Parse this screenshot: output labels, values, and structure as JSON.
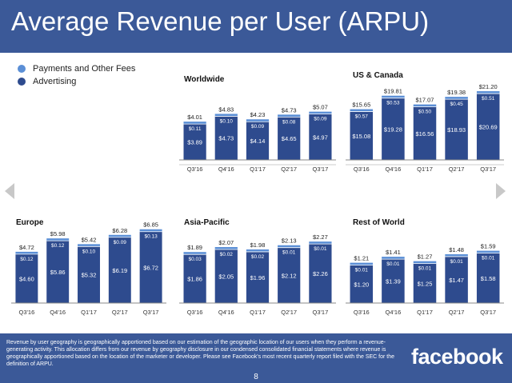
{
  "slide": {
    "title": "Average Revenue per User (ARPU)",
    "footnote": "Revenue by user geography is geographically apportioned based on our estimation of the geographic location of our users when they perform a revenue-generating activity. This allocation differs from our revenue by geography disclosure in our condensed consolidated financial statements where revenue is geographically apportioned based on the location of the marketer or developer. Please see Facebook's most recent quarterly report filed with the SEC for the definition of ARPU.",
    "logo": "facebook",
    "page_number": "8"
  },
  "legend": [
    {
      "label": "Payments and Other Fees",
      "color": "#5b8fd6"
    },
    {
      "label": "Advertising",
      "color": "#2e4b8e"
    }
  ],
  "colors": {
    "advertising": "#2e4b8e",
    "payments": "#5b8fd6",
    "header": "#3b5998",
    "axis": "#888888"
  },
  "chart_data": [
    {
      "type": "bar",
      "title": "Worldwide",
      "categories": [
        "Q3'16",
        "Q4'16",
        "Q1'17",
        "Q2'17",
        "Q3'17"
      ],
      "series": [
        {
          "name": "Advertising",
          "values": [
            3.89,
            4.73,
            4.14,
            4.65,
            4.97
          ],
          "labels": [
            "$3.89",
            "$4.73",
            "$4.14",
            "$4.65",
            "$4.97"
          ]
        },
        {
          "name": "Payments and Other Fees",
          "values": [
            0.11,
            0.1,
            0.09,
            0.08,
            0.09
          ],
          "labels": [
            "$0.11",
            "$0.10",
            "$0.09",
            "$0.08",
            "$0.09"
          ]
        }
      ],
      "totals": [
        "$4.01",
        "$4.83",
        "$4.23",
        "$4.73",
        "$5.07"
      ],
      "ylim": [
        0,
        5.2
      ]
    },
    {
      "type": "bar",
      "title": "US & Canada",
      "categories": [
        "Q3'16",
        "Q4'16",
        "Q1'17",
        "Q2'17",
        "Q3'17"
      ],
      "series": [
        {
          "name": "Advertising",
          "values": [
            15.08,
            19.28,
            16.56,
            18.93,
            20.69
          ],
          "labels": [
            "$15.08",
            "$19.28",
            "$16.56",
            "$18.93",
            "$20.69"
          ]
        },
        {
          "name": "Payments and Other Fees",
          "values": [
            0.57,
            0.53,
            0.5,
            0.45,
            0.51
          ],
          "labels": [
            "$0.57",
            "$0.53",
            "$0.50",
            "$0.45",
            "$0.51"
          ]
        }
      ],
      "totals": [
        "$15.65",
        "$19.81",
        "$17.07",
        "$19.38",
        "$21.20"
      ],
      "ylim": [
        0,
        21.2
      ]
    },
    {
      "type": "bar",
      "title": "Europe",
      "categories": [
        "Q3'16",
        "Q4'16",
        "Q1'17",
        "Q2'17",
        "Q3'17"
      ],
      "series": [
        {
          "name": "Advertising",
          "values": [
            4.6,
            5.86,
            5.32,
            6.19,
            6.72
          ],
          "labels": [
            "$4.60",
            "$5.86",
            "$5.32",
            "$6.19",
            "$6.72"
          ]
        },
        {
          "name": "Payments and Other Fees",
          "values": [
            0.12,
            0.12,
            0.1,
            0.09,
            0.13
          ],
          "labels": [
            "$0.12",
            "$0.12",
            "$0.10",
            "$0.09",
            "$0.13"
          ]
        }
      ],
      "totals": [
        "$4.72",
        "$5.98",
        "$5.42",
        "$6.28",
        "$6.85"
      ],
      "ylim": [
        0,
        6.85
      ]
    },
    {
      "type": "bar",
      "title": "Asia-Pacific",
      "categories": [
        "Q3'16",
        "Q4'16",
        "Q1'17",
        "Q2'17",
        "Q3'17"
      ],
      "series": [
        {
          "name": "Advertising",
          "values": [
            1.86,
            2.05,
            1.96,
            2.12,
            2.26
          ],
          "labels": [
            "$1.86",
            "$2.05",
            "$1.96",
            "$2.12",
            "$2.26"
          ]
        },
        {
          "name": "Payments and Other Fees",
          "values": [
            0.03,
            0.02,
            0.02,
            0.01,
            0.01
          ],
          "labels": [
            "$0.03",
            "$0.02",
            "$0.02",
            "$0.01",
            "$0.01"
          ]
        }
      ],
      "totals": [
        "$1.89",
        "$2.07",
        "$1.98",
        "$2.13",
        "$2.27"
      ],
      "ylim": [
        0,
        2.6
      ]
    },
    {
      "type": "bar",
      "title": "Rest of World",
      "categories": [
        "Q3'16",
        "Q4'16",
        "Q1'17",
        "Q2'17",
        "Q3'17"
      ],
      "series": [
        {
          "name": "Advertising",
          "values": [
            1.2,
            1.39,
            1.25,
            1.47,
            1.58
          ],
          "labels": [
            "$1.20",
            "$1.39",
            "$1.25",
            "$1.47",
            "$1.58"
          ]
        },
        {
          "name": "Payments and Other Fees",
          "values": [
            0.01,
            0.01,
            0.01,
            0.01,
            0.01
          ],
          "labels": [
            "$0.01",
            "$0.01",
            "$0.01",
            "$0.01",
            "$0.01"
          ]
        }
      ],
      "totals": [
        "$1.21",
        "$1.41",
        "$1.27",
        "$1.48",
        "$1.59"
      ],
      "ylim": [
        0,
        2.0
      ]
    }
  ]
}
